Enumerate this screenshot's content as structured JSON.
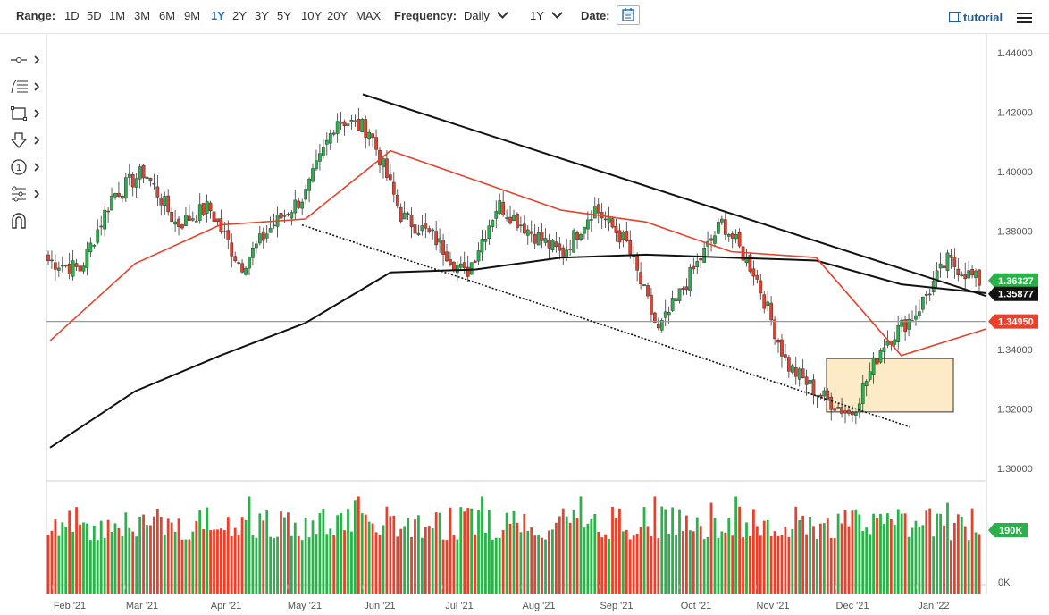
{
  "toolbar": {
    "range_label": "Range:",
    "ranges": [
      "1D",
      "5D",
      "1M",
      "3M",
      "6M",
      "9M",
      "1Y",
      "2Y",
      "3Y",
      "5Y",
      "10Y",
      "20Y",
      "MAX"
    ],
    "active_range": "1Y",
    "frequency_label": "Frequency:",
    "frequency_value": "Daily",
    "period_value": "1Y",
    "date_label": "Date:",
    "tutorial_label": "tutorial"
  },
  "tools": [
    {
      "icon": "line-tool-icon"
    },
    {
      "icon": "fibonacci-tool-icon"
    },
    {
      "icon": "rectangle-tool-icon"
    },
    {
      "icon": "arrow-down-tool-icon"
    },
    {
      "icon": "number-marker-tool-icon"
    },
    {
      "icon": "pattern-tool-icon"
    },
    {
      "icon": "magnet-icon"
    }
  ],
  "chart_data": {
    "type": "candlestick",
    "y_ticks": [
      "1.30000",
      "1.32000",
      "1.34000",
      "1.36000",
      "1.38000",
      "1.40000",
      "1.42000",
      "1.44000"
    ],
    "ylim": [
      1.294,
      1.444
    ],
    "x_ticks": [
      "Feb '21",
      "Mar '21",
      "Apr '21",
      "May '21",
      "Jun '21",
      "Jul '21",
      "Aug '21",
      "Sep '21",
      "Oct '21",
      "Nov '21",
      "Dec '21",
      "Jan '22"
    ],
    "price_tags": [
      {
        "value": "1.36327",
        "color": "#2bb14a",
        "text_color": "#ffffff"
      },
      {
        "value": "1.35877",
        "color": "#111111",
        "text_color": "#ffffff"
      },
      {
        "value": "1.34950",
        "color": "#e8402a",
        "text_color": "#ffffff"
      }
    ],
    "volume_tag": "190K",
    "volume_zero_label": "0K",
    "close_path": [
      [
        "Feb '21",
        1.37
      ],
      [
        "Feb '21",
        1.367
      ],
      [
        "Mar '21",
        1.392
      ],
      [
        "Mar '21",
        1.4
      ],
      [
        "Mar '21",
        1.382
      ],
      [
        "Apr '21",
        1.388
      ],
      [
        "Apr '21",
        1.368
      ],
      [
        "May '21",
        1.382
      ],
      [
        "May '21",
        1.392
      ],
      [
        "Jun '21",
        1.418
      ],
      [
        "Jun '21",
        1.414
      ],
      [
        "Jul '21",
        1.385
      ],
      [
        "Jul '21",
        1.378
      ],
      [
        "Aug '21",
        1.365
      ],
      [
        "Aug '21",
        1.389
      ],
      [
        "Sep '21",
        1.38
      ],
      [
        "Sep '21",
        1.372
      ],
      [
        "Sep '21",
        1.388
      ],
      [
        "Oct '21",
        1.376
      ],
      [
        "Oct '21",
        1.346
      ],
      [
        "Oct '21",
        1.365
      ],
      [
        "Nov '21",
        1.383
      ],
      [
        "Nov '21",
        1.366
      ],
      [
        "Dec '21",
        1.335
      ],
      [
        "Dec '21",
        1.325
      ],
      [
        "Dec '21",
        1.318
      ],
      [
        "Jan '22",
        1.342
      ],
      [
        "Jan '22",
        1.352
      ],
      [
        "Jan '22",
        1.37
      ],
      [
        "Jan '22",
        1.363
      ]
    ],
    "ma_50_path": [
      [
        "Feb '21",
        1.343
      ],
      [
        "Mar '21",
        1.369
      ],
      [
        "Apr '21",
        1.382
      ],
      [
        "May '21",
        1.384
      ],
      [
        "Jun '21",
        1.407
      ],
      [
        "Jul '21",
        1.397
      ],
      [
        "Aug '21",
        1.387
      ],
      [
        "Sep '21",
        1.383
      ],
      [
        "Oct '21",
        1.373
      ],
      [
        "Nov '21",
        1.371
      ],
      [
        "Dec '21",
        1.338
      ],
      [
        "Jan '22",
        1.347
      ]
    ],
    "ma_200_path": [
      [
        "Feb '21",
        1.307
      ],
      [
        "Mar '21",
        1.326
      ],
      [
        "Apr '21",
        1.338
      ],
      [
        "May '21",
        1.349
      ],
      [
        "Jun '21",
        1.366
      ],
      [
        "Jul '21",
        1.367
      ],
      [
        "Aug '21",
        1.371
      ],
      [
        "Sep '21",
        1.372
      ],
      [
        "Oct '21",
        1.371
      ],
      [
        "Nov '21",
        1.37
      ],
      [
        "Dec '21",
        1.362
      ],
      [
        "Jan '22",
        1.359
      ]
    ],
    "horizontal_line": 1.3495,
    "trend_line_upper": [
      [
        "Jun '21",
        1.426
      ],
      [
        "Jan '22",
        1.358
      ]
    ],
    "trend_line_lower": [
      [
        "May '21",
        1.382
      ],
      [
        "Dec '21",
        1.314
      ]
    ],
    "shaded_box": {
      "from": "Dec '21",
      "to": "Jan '22",
      "top": 1.337,
      "bottom": 1.319,
      "color": "#fdebc8"
    },
    "colors": {
      "up": "#2bb14a",
      "down": "#e8402a",
      "ma_50": "#e8402a",
      "ma_200": "#111111",
      "grid_line": "#999999"
    }
  }
}
